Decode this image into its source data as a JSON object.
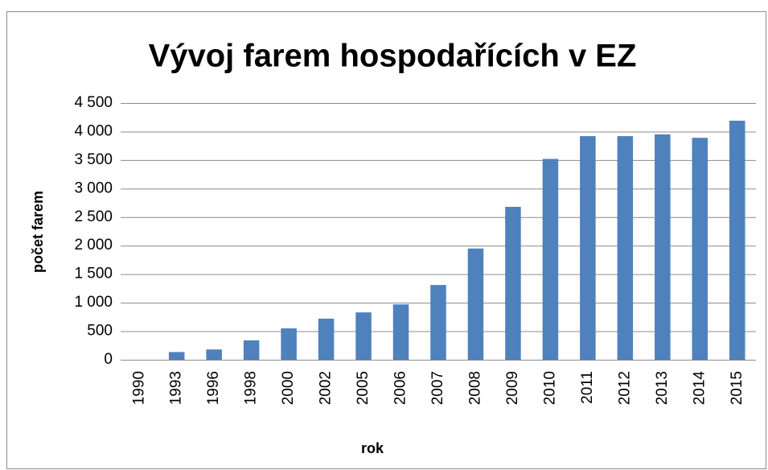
{
  "chart_data": {
    "type": "bar",
    "title": "Vývoj farem hospodařících v EZ",
    "x_label": "rok",
    "y_label": "počet farem",
    "categories": [
      "1990",
      "1993",
      "1996",
      "1998",
      "2000",
      "2002",
      "2005",
      "2006",
      "2007",
      "2008",
      "2009",
      "2010",
      "2011",
      "2012",
      "2013",
      "2014",
      "2015"
    ],
    "values": [
      0,
      135,
      180,
      340,
      550,
      720,
      830,
      970,
      1310,
      1950,
      2680,
      3520,
      3920,
      3920,
      3950,
      3890,
      4190
    ],
    "color": "#4f81bd",
    "ylim": [
      0,
      4500
    ],
    "yticks": [
      0,
      500,
      {
        "value": 1000,
        "label": "1 000"
      },
      {
        "value": 1500,
        "label": "1 500"
      },
      {
        "value": 2000,
        "label": "2 000"
      },
      {
        "value": 2500,
        "label": "2 500"
      },
      {
        "value": 3000,
        "label": "3 000"
      },
      {
        "value": 3500,
        "label": "3 500"
      },
      {
        "value": 4000,
        "label": "4 000"
      },
      {
        "value": 4500,
        "label": "4 500"
      }
    ],
    "grid": true
  }
}
